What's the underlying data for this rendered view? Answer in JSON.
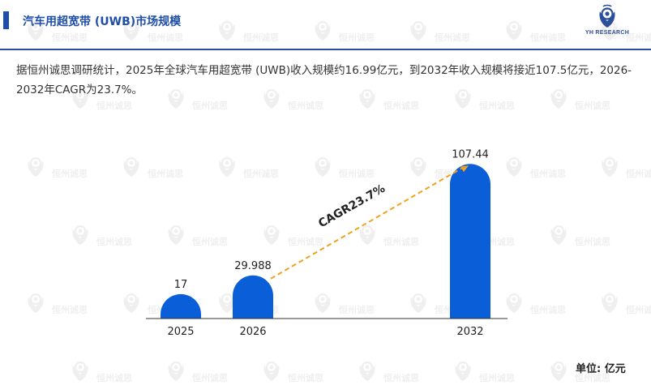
{
  "header": {
    "title": "汽车用超宽带 (UWB)市场规模",
    "accent_color": "#1f4ea8"
  },
  "logo": {
    "icon": "yh-research-logo-icon",
    "text": "YH RESEARCH"
  },
  "watermark": {
    "text": "恒州诚思",
    "icon": "yh-watermark-icon"
  },
  "description": "据恒州诚思调研统计，2025年全球汽车用超宽带 (UWB)收入规模约16.99亿元，到2032年收入规模将接近107.5亿元，2026-2032年CAGR为23.7%。",
  "unit_label": "单位: 亿元",
  "chart_data": {
    "type": "bar",
    "categories": [
      "2025",
      "2026",
      "2032"
    ],
    "values": [
      17,
      29.988,
      107.44
    ],
    "value_labels": [
      "17",
      "29.988",
      "107.44"
    ],
    "bar_color": "#0a5fd8",
    "annotation": {
      "text": "CAGR23.7%",
      "from_category": "2026",
      "to_category": "2032",
      "arrow_color": "#f0a21e"
    },
    "ylim": [
      0,
      120
    ],
    "grid": false,
    "legend": "none"
  }
}
